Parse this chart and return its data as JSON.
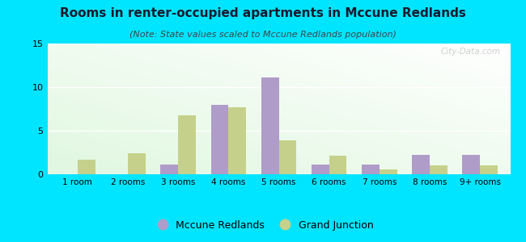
{
  "title": "Rooms in renter-occupied apartments in Mccune Redlands",
  "subtitle": "(Note: State values scaled to Mccune Redlands population)",
  "categories": [
    "1 room",
    "2 rooms",
    "3 rooms",
    "4 rooms",
    "5 rooms",
    "6 rooms",
    "7 rooms",
    "8 rooms",
    "9+ rooms"
  ],
  "mccune_redlands": [
    0,
    0,
    1.1,
    8.0,
    11.1,
    1.1,
    1.1,
    2.2,
    2.2
  ],
  "grand_junction": [
    1.7,
    2.4,
    6.8,
    7.7,
    3.9,
    2.1,
    0.6,
    1.0,
    1.0
  ],
  "mccune_color": "#b09cc8",
  "grand_color": "#c5d18a",
  "background_color": "#00e5ff",
  "ylim": [
    0,
    15
  ],
  "yticks": [
    0,
    5,
    10,
    15
  ],
  "bar_width": 0.35,
  "title_fontsize": 11,
  "subtitle_fontsize": 8,
  "legend_labels": [
    "Mccune Redlands",
    "Grand Junction"
  ],
  "watermark": "City-Data.com"
}
